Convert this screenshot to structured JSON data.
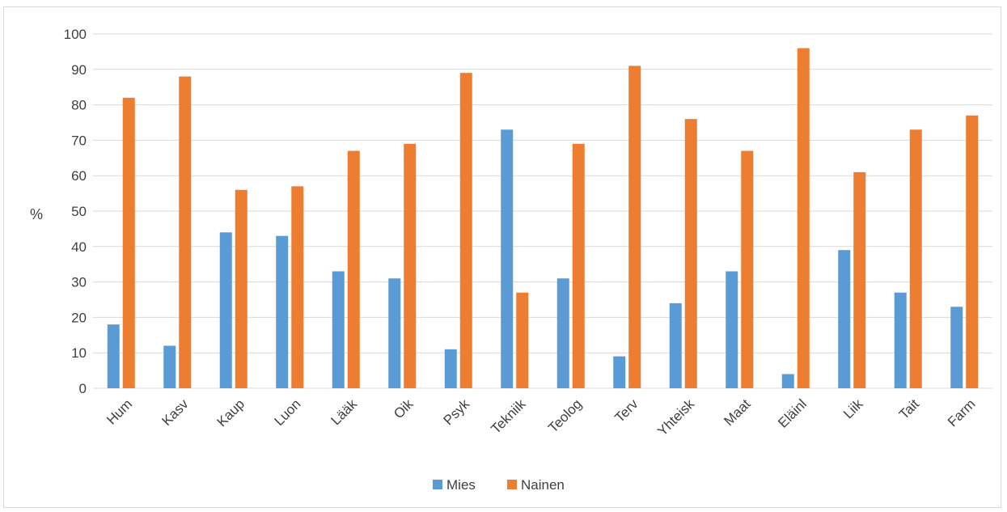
{
  "chart_data": {
    "type": "bar",
    "title": "",
    "xlabel": "",
    "ylabel": "%",
    "ylim": [
      0,
      100
    ],
    "yticks": [
      0,
      10,
      20,
      30,
      40,
      50,
      60,
      70,
      80,
      90,
      100
    ],
    "grid": true,
    "legend_position": "bottom",
    "categories": [
      "Hum",
      "Kasv",
      "Kaup",
      "Luon",
      "Lääk",
      "Oik",
      "Psyk",
      "Tekniik",
      "Teolog",
      "Terv",
      "Yhteisk",
      "Maat",
      "Eläinl",
      "Liik",
      "Tait",
      "Farm"
    ],
    "series": [
      {
        "name": "Mies",
        "color": "#5b9bd5",
        "values": [
          18,
          12,
          44,
          43,
          33,
          31,
          11,
          73,
          31,
          9,
          24,
          33,
          4,
          39,
          27,
          23
        ]
      },
      {
        "name": "Nainen",
        "color": "#ed7d31",
        "values": [
          82,
          88,
          56,
          57,
          67,
          69,
          89,
          27,
          69,
          91,
          76,
          67,
          96,
          61,
          73,
          77
        ]
      }
    ]
  }
}
